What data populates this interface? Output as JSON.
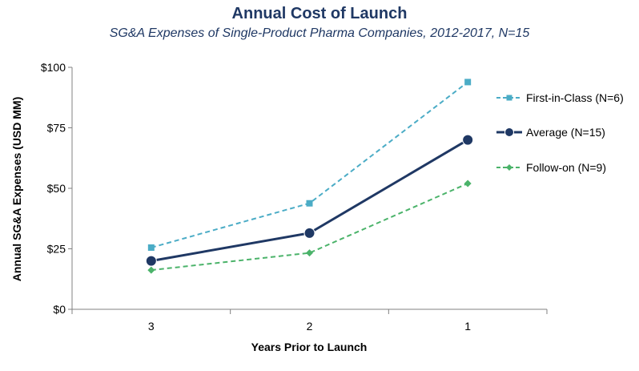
{
  "chart_data": {
    "type": "line",
    "title": "Annual Cost of Launch",
    "subtitle": "SG&A Expenses of Single-Product Pharma Companies, 2012-2017, N=15",
    "xlabel": "Years Prior to Launch",
    "ylabel": "Annual SG&A Expenses (USD MM)",
    "categories": [
      "3",
      "2",
      "1"
    ],
    "ylim": [
      0,
      100
    ],
    "yticks": [
      0,
      25,
      50,
      75,
      100
    ],
    "ytick_labels": [
      "$0",
      "$25",
      "$50",
      "$75",
      "$100"
    ],
    "grid": false,
    "legend_position": "right",
    "series": [
      {
        "name": "First-in-Class (N=6)",
        "values": [
          25.5,
          43.8,
          93.9
        ],
        "color": "#4bacc6",
        "marker": "square",
        "line_style": "dashed"
      },
      {
        "name": "Average (N=15)",
        "values": [
          20.0,
          31.5,
          70.0
        ],
        "color": "#1f3864",
        "marker": "circle",
        "line_style": "solid"
      },
      {
        "name": "Follow-on (N=9)",
        "values": [
          16.2,
          23.3,
          52.0
        ],
        "color": "#4bb36a",
        "marker": "diamond",
        "line_style": "dashed"
      }
    ]
  }
}
